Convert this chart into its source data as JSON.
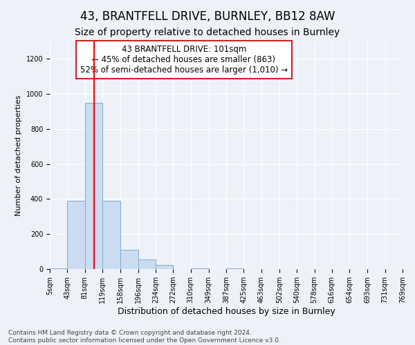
{
  "title": "43, BRANTFELL DRIVE, BURNLEY, BB12 8AW",
  "subtitle": "Size of property relative to detached houses in Burnley",
  "xlabel": "Distribution of detached houses by size in Burnley",
  "ylabel": "Number of detached properties",
  "footnote1": "Contains HM Land Registry data © Crown copyright and database right 2024.",
  "footnote2": "Contains public sector information licensed under the Open Government Licence v3.0.",
  "annotation_line1": "43 BRANTFELL DRIVE: 101sqm",
  "annotation_line2": "← 45% of detached houses are smaller (863)",
  "annotation_line3": "52% of semi-detached houses are larger (1,010) →",
  "bar_color": "#ccdcf0",
  "bar_edge_color": "#7aadd4",
  "red_line_x": 101,
  "bin_edges": [
    5,
    43,
    81,
    119,
    158,
    196,
    234,
    272,
    310,
    349,
    387,
    425,
    463,
    502,
    540,
    578,
    616,
    654,
    693,
    731,
    769
  ],
  "bar_heights": [
    5,
    390,
    950,
    390,
    110,
    55,
    25,
    0,
    5,
    0,
    5,
    0,
    0,
    0,
    0,
    0,
    0,
    0,
    0,
    0
  ],
  "ylim": [
    0,
    1300
  ],
  "yticks": [
    0,
    200,
    400,
    600,
    800,
    1000,
    1200
  ],
  "background_color": "#eef2f8",
  "grid_color": "#ffffff",
  "annotation_box_facecolor": "#ffffff",
  "annotation_box_edgecolor": "#cc2222",
  "title_fontsize": 12,
  "subtitle_fontsize": 10,
  "xlabel_fontsize": 9,
  "ylabel_fontsize": 8,
  "tick_fontsize": 7,
  "annotation_fontsize": 8.5,
  "footnote_fontsize": 6.5
}
